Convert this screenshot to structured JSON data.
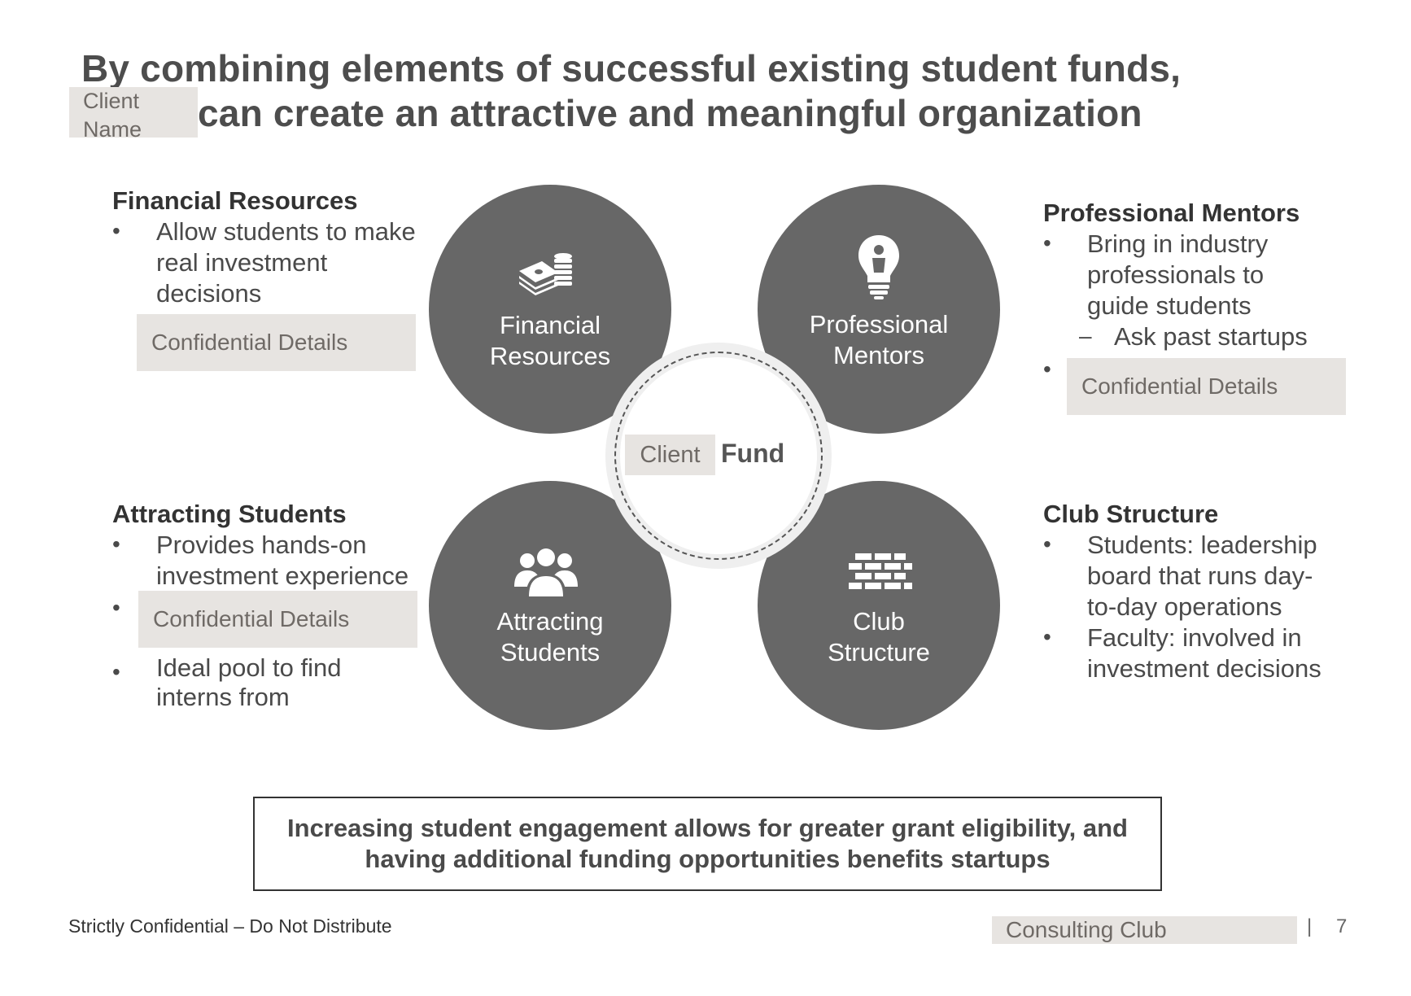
{
  "title": {
    "line1": "By combining elements of successful existing student funds,",
    "line2": "can create an attractive and meaningful organization",
    "client_name_placeholder": "Client Name"
  },
  "sections": {
    "financial": {
      "heading": "Financial Resources",
      "bullet1": [
        "Allow students to make",
        "real investment",
        "decisions"
      ],
      "redacted": "Confidential Details"
    },
    "mentors": {
      "heading": "Professional Mentors",
      "bullet1": [
        "Bring in industry",
        "professionals to",
        "guide students"
      ],
      "sub_bullet": "Ask past startups",
      "redacted": "Confidential Details"
    },
    "attracting": {
      "heading": "Attracting Students",
      "bullet1": [
        "Provides hands-on",
        "investment experience"
      ],
      "redacted": "Confidential Details",
      "bullet3": [
        "Ideal pool to find",
        "interns from"
      ]
    },
    "club": {
      "heading": "Club Structure",
      "bullet1": [
        "Students: leadership",
        "board that runs day-",
        "to-day operations"
      ],
      "bullet2": [
        "Faculty: involved in",
        "investment decisions"
      ]
    }
  },
  "circles": {
    "financial": [
      "Financial",
      "Resources"
    ],
    "mentors": [
      "Professional",
      "Mentors"
    ],
    "attracting": [
      "Attracting",
      "Students"
    ],
    "club": [
      "Club",
      "Structure"
    ]
  },
  "center": {
    "client": "Client",
    "fund": "Fund"
  },
  "callout": [
    "Increasing student engagement allows for greater grant eligibility, and",
    "having additional funding opportunities benefits startups"
  ],
  "footer": {
    "confidential": "Strictly Confidential – Do Not Distribute",
    "club": "Consulting Club",
    "separator": "|",
    "page": "7"
  },
  "bullets": {
    "dot": "•",
    "dash": "–"
  },
  "icons": [
    "money-stack-icon",
    "lightbulb-person-icon",
    "people-group-icon",
    "brick-wall-icon"
  ],
  "colors": {
    "circle": "#676767",
    "redaction": "#e7e4e1",
    "text": "#4a4a4a"
  }
}
